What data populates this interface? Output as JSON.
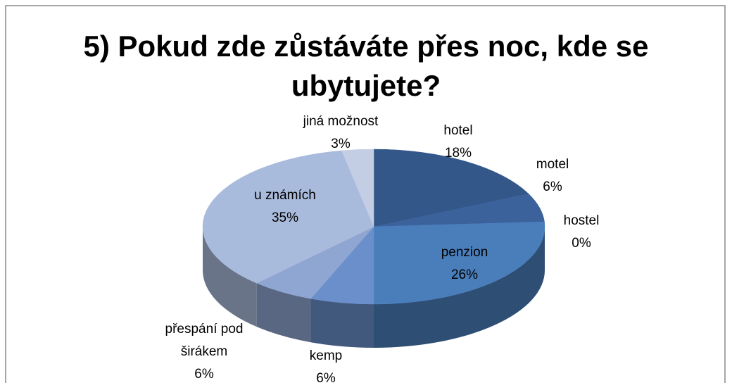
{
  "chart_data": {
    "type": "pie",
    "title": "5) Pokud zde zůstáváte přes noc, kde se ubytujete?",
    "categories": [
      "hotel",
      "motel",
      "hostel",
      "penzion",
      "kemp",
      "přespání pod širákem",
      "u známích",
      "jiná možnost"
    ],
    "values": [
      18,
      6,
      0,
      26,
      6,
      6,
      35,
      3
    ],
    "value_labels": [
      "18%",
      "6%",
      "0%",
      "26%",
      "6%",
      "6%",
      "35%",
      "3%"
    ],
    "colors": [
      "#34578a",
      "#3c629c",
      "#4370ad",
      "#4a7ebb",
      "#6b8fcb",
      "#8fa6d2",
      "#a9bbdc",
      "#c3cde4"
    ]
  }
}
